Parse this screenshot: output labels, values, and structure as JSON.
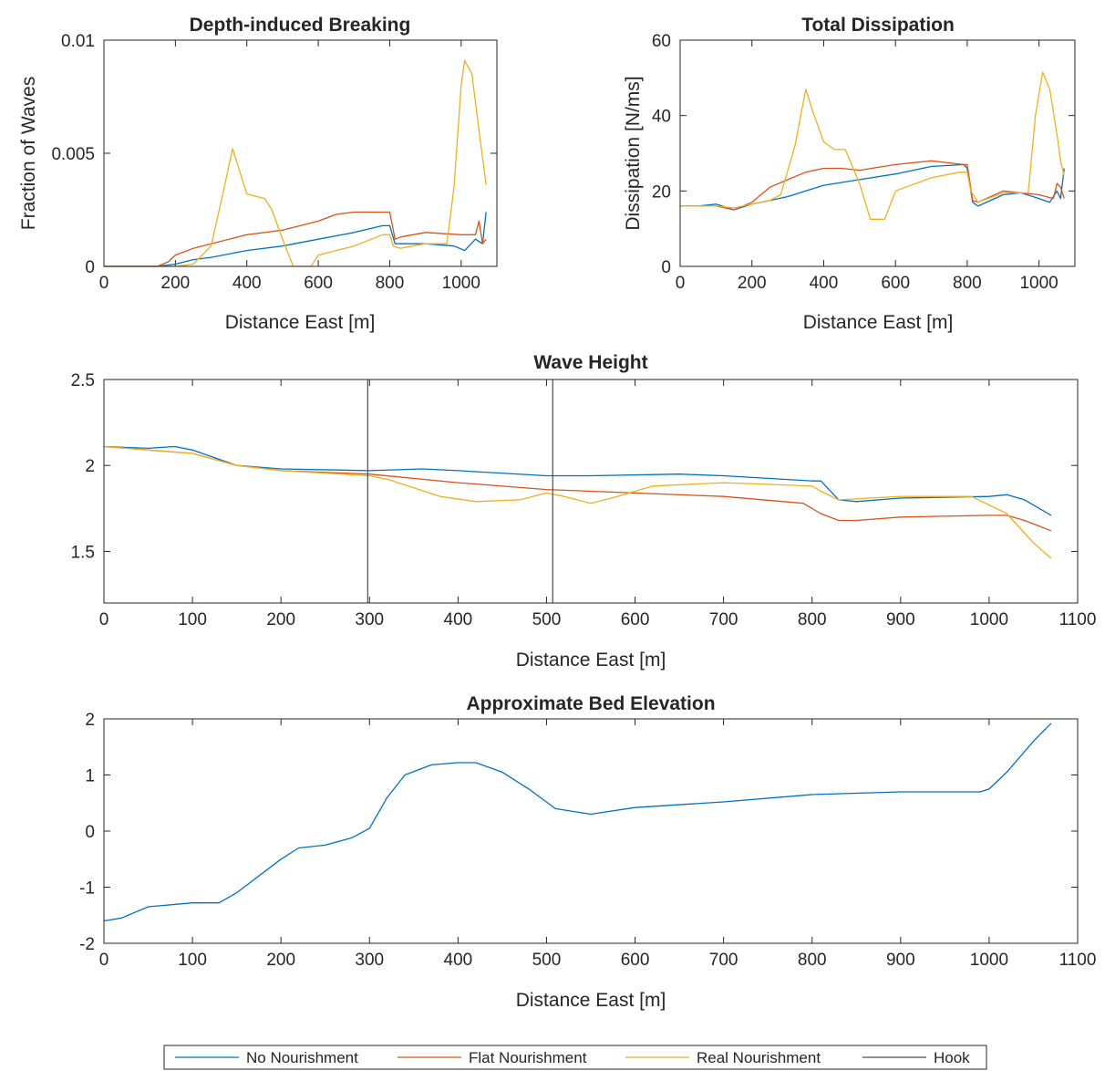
{
  "chart_data": [
    {
      "id": "breaking",
      "type": "line",
      "title": "Depth-induced Breaking",
      "xlabel": "Distance East [m]",
      "ylabel": "Fraction of Waves",
      "xlim": [
        0,
        1100
      ],
      "ylim": [
        0,
        0.01
      ],
      "xticks": [
        0,
        200,
        400,
        600,
        800,
        1000
      ],
      "xtick_labels": [
        "0",
        "200",
        "400",
        "600",
        "800",
        "1000"
      ],
      "yticks": [
        0,
        0.005,
        0.01
      ],
      "ytick_labels": [
        "0",
        "0.005",
        "0.01"
      ],
      "grid": false,
      "series": [
        {
          "name": "No Nourishment",
          "color": "#0072BD",
          "x": [
            0,
            150,
            200,
            250,
            300,
            400,
            500,
            600,
            700,
            780,
            800,
            815,
            830,
            900,
            980,
            1010,
            1040,
            1060,
            1070
          ],
          "y": [
            0,
            0,
            0.0001,
            0.0003,
            0.0004,
            0.0007,
            0.0009,
            0.0012,
            0.0015,
            0.0018,
            0.0018,
            0.001,
            0.001,
            0.001,
            0.0009,
            0.0007,
            0.0012,
            0.001,
            0.0024
          ]
        },
        {
          "name": "Flat Nourishment",
          "color": "#D95319",
          "x": [
            0,
            150,
            180,
            200,
            250,
            300,
            400,
            500,
            600,
            650,
            700,
            790,
            800,
            815,
            830,
            900,
            1000,
            1040,
            1050,
            1060,
            1070
          ],
          "y": [
            0,
            0,
            0.0002,
            0.0005,
            0.0008,
            0.001,
            0.0014,
            0.0016,
            0.002,
            0.0023,
            0.0024,
            0.0024,
            0.0024,
            0.0012,
            0.0013,
            0.0015,
            0.0014,
            0.0014,
            0.002,
            0.001,
            0.0012
          ]
        },
        {
          "name": "Real Nourishment",
          "color": "#EDB120",
          "x": [
            0,
            200,
            250,
            300,
            330,
            360,
            380,
            400,
            450,
            470,
            500,
            530,
            580,
            600,
            650,
            700,
            780,
            800,
            810,
            830,
            900,
            960,
            980,
            1000,
            1010,
            1030,
            1050,
            1070
          ],
          "y": [
            0,
            0,
            0.0001,
            0.0009,
            0.003,
            0.0052,
            0.0042,
            0.0032,
            0.003,
            0.0025,
            0.0012,
            0,
            0,
            0.0005,
            0.0007,
            0.0009,
            0.0014,
            0.0014,
            0.0009,
            0.0008,
            0.001,
            0.001,
            0.0035,
            0.008,
            0.0091,
            0.0085,
            0.006,
            0.0036
          ]
        }
      ]
    },
    {
      "id": "dissipation",
      "type": "line",
      "title": "Total Dissipation",
      "xlabel": "Distance East [m]",
      "ylabel": "Dissipation [N/ms]",
      "xlim": [
        0,
        1100
      ],
      "ylim": [
        0,
        60
      ],
      "xticks": [
        0,
        200,
        400,
        600,
        800,
        1000
      ],
      "xtick_labels": [
        "0",
        "200",
        "400",
        "600",
        "800",
        "1000"
      ],
      "yticks": [
        0,
        20,
        40,
        60
      ],
      "ytick_labels": [
        "0",
        "20",
        "40",
        "60"
      ],
      "grid": false,
      "series": [
        {
          "name": "No Nourishment",
          "color": "#0072BD",
          "x": [
            0,
            50,
            100,
            150,
            200,
            250,
            300,
            350,
            400,
            500,
            600,
            700,
            790,
            800,
            815,
            830,
            900,
            950,
            1000,
            1030,
            1050,
            1060,
            1070
          ],
          "y": [
            16,
            16,
            16.5,
            15,
            16.5,
            17.5,
            18.5,
            20,
            21.5,
            23,
            24.5,
            26.5,
            27,
            26,
            17,
            16,
            19,
            19.5,
            18,
            17,
            20,
            18,
            26
          ]
        },
        {
          "name": "Flat Nourishment",
          "color": "#D95319",
          "x": [
            0,
            50,
            100,
            150,
            200,
            250,
            300,
            350,
            400,
            450,
            500,
            600,
            650,
            700,
            790,
            800,
            815,
            830,
            900,
            1000,
            1040,
            1050,
            1060,
            1070
          ],
          "y": [
            16,
            16,
            16,
            15,
            17,
            21,
            23,
            25,
            26,
            26,
            25.5,
            27,
            27.5,
            28,
            27,
            27,
            17.5,
            17,
            20,
            19,
            18,
            22,
            21,
            18
          ]
        },
        {
          "name": "Real Nourishment",
          "color": "#EDB120",
          "x": [
            0,
            50,
            100,
            150,
            200,
            250,
            280,
            320,
            350,
            370,
            400,
            430,
            460,
            500,
            530,
            570,
            600,
            700,
            780,
            800,
            810,
            830,
            900,
            970,
            990,
            1010,
            1030,
            1050,
            1060,
            1070
          ],
          "y": [
            16,
            16,
            16,
            15.5,
            16.5,
            17.5,
            19,
            32,
            47,
            41,
            33,
            31,
            31,
            22,
            12.5,
            12.5,
            20,
            23.5,
            25,
            25,
            20,
            17,
            19.5,
            19.5,
            40,
            51.5,
            47,
            35,
            28,
            24
          ]
        }
      ]
    },
    {
      "id": "waveheight",
      "type": "line",
      "title": "Wave Height",
      "xlabel": "Distance East [m]",
      "ylabel": "",
      "xlim": [
        0,
        1100
      ],
      "ylim": [
        1.2,
        2.5
      ],
      "xticks": [
        0,
        100,
        200,
        300,
        400,
        500,
        600,
        700,
        800,
        900,
        1000,
        1100
      ],
      "xtick_labels": [
        "0",
        "100",
        "200",
        "300",
        "400",
        "500",
        "600",
        "700",
        "800",
        "900",
        "1000",
        "1100"
      ],
      "yticks": [
        1.5,
        2,
        2.5
      ],
      "ytick_labels": [
        "1.5",
        "2",
        "2.5"
      ],
      "grid": false,
      "series": [
        {
          "name": "No Nourishment",
          "color": "#0072BD",
          "x": [
            0,
            50,
            80,
            100,
            150,
            200,
            300,
            360,
            400,
            500,
            550,
            650,
            700,
            800,
            810,
            830,
            850,
            900,
            1000,
            1020,
            1040,
            1070
          ],
          "y": [
            2.11,
            2.1,
            2.11,
            2.09,
            2.0,
            1.98,
            1.97,
            1.98,
            1.97,
            1.94,
            1.94,
            1.95,
            1.94,
            1.91,
            1.91,
            1.8,
            1.79,
            1.81,
            1.82,
            1.83,
            1.8,
            1.71
          ]
        },
        {
          "name": "Flat Nourishment",
          "color": "#D95319",
          "x": [
            0,
            50,
            100,
            150,
            200,
            300,
            400,
            500,
            600,
            700,
            790,
            810,
            830,
            850,
            900,
            1000,
            1020,
            1040,
            1070
          ],
          "y": [
            2.11,
            2.09,
            2.07,
            2.0,
            1.97,
            1.95,
            1.9,
            1.86,
            1.84,
            1.82,
            1.78,
            1.72,
            1.68,
            1.68,
            1.7,
            1.71,
            1.71,
            1.68,
            1.62
          ]
        },
        {
          "name": "Real Nourishment",
          "color": "#EDB120",
          "x": [
            0,
            50,
            100,
            150,
            200,
            300,
            320,
            350,
            380,
            420,
            470,
            500,
            520,
            550,
            580,
            620,
            700,
            800,
            810,
            830,
            900,
            980,
            1020,
            1050,
            1070
          ],
          "y": [
            2.11,
            2.09,
            2.07,
            2.0,
            1.97,
            1.94,
            1.92,
            1.87,
            1.82,
            1.79,
            1.8,
            1.84,
            1.82,
            1.78,
            1.82,
            1.88,
            1.9,
            1.88,
            1.85,
            1.8,
            1.82,
            1.82,
            1.72,
            1.55,
            1.46
          ]
        }
      ],
      "hook": {
        "name": "Hook",
        "color": "#4D4D4D",
        "x": [
          298,
          507
        ]
      }
    },
    {
      "id": "bed",
      "type": "line",
      "title": "Approximate Bed Elevation",
      "xlabel": "Distance East [m]",
      "ylabel": "",
      "xlim": [
        0,
        1100
      ],
      "ylim": [
        -2,
        2
      ],
      "xticks": [
        0,
        100,
        200,
        300,
        400,
        500,
        600,
        700,
        800,
        900,
        1000,
        1100
      ],
      "xtick_labels": [
        "0",
        "100",
        "200",
        "300",
        "400",
        "500",
        "600",
        "700",
        "800",
        "900",
        "1000",
        "1100"
      ],
      "yticks": [
        -2,
        -1,
        0,
        1,
        2
      ],
      "ytick_labels": [
        "-2",
        "-1",
        "0",
        "1",
        "2"
      ],
      "grid": false,
      "series": [
        {
          "name": "No Nourishment",
          "color": "#0072BD",
          "x": [
            0,
            20,
            50,
            100,
            130,
            150,
            200,
            220,
            250,
            280,
            300,
            320,
            340,
            370,
            400,
            420,
            450,
            480,
            510,
            550,
            600,
            700,
            800,
            900,
            990,
            1000,
            1020,
            1050,
            1070
          ],
          "y": [
            -1.6,
            -1.55,
            -1.35,
            -1.28,
            -1.28,
            -1.1,
            -0.5,
            -0.3,
            -0.25,
            -0.12,
            0.05,
            0.6,
            1.0,
            1.18,
            1.22,
            1.22,
            1.05,
            0.75,
            0.4,
            0.3,
            0.42,
            0.52,
            0.65,
            0.7,
            0.7,
            0.75,
            1.05,
            1.6,
            1.92
          ]
        }
      ]
    }
  ],
  "legend": {
    "placement": "bottom",
    "entries": [
      {
        "label": "No Nourishment",
        "color": "#0072BD"
      },
      {
        "label": "Flat Nourishment",
        "color": "#D95319"
      },
      {
        "label": "Real Nourishment",
        "color": "#EDB120"
      },
      {
        "label": "Hook",
        "color": "#4D4D4D"
      }
    ]
  }
}
